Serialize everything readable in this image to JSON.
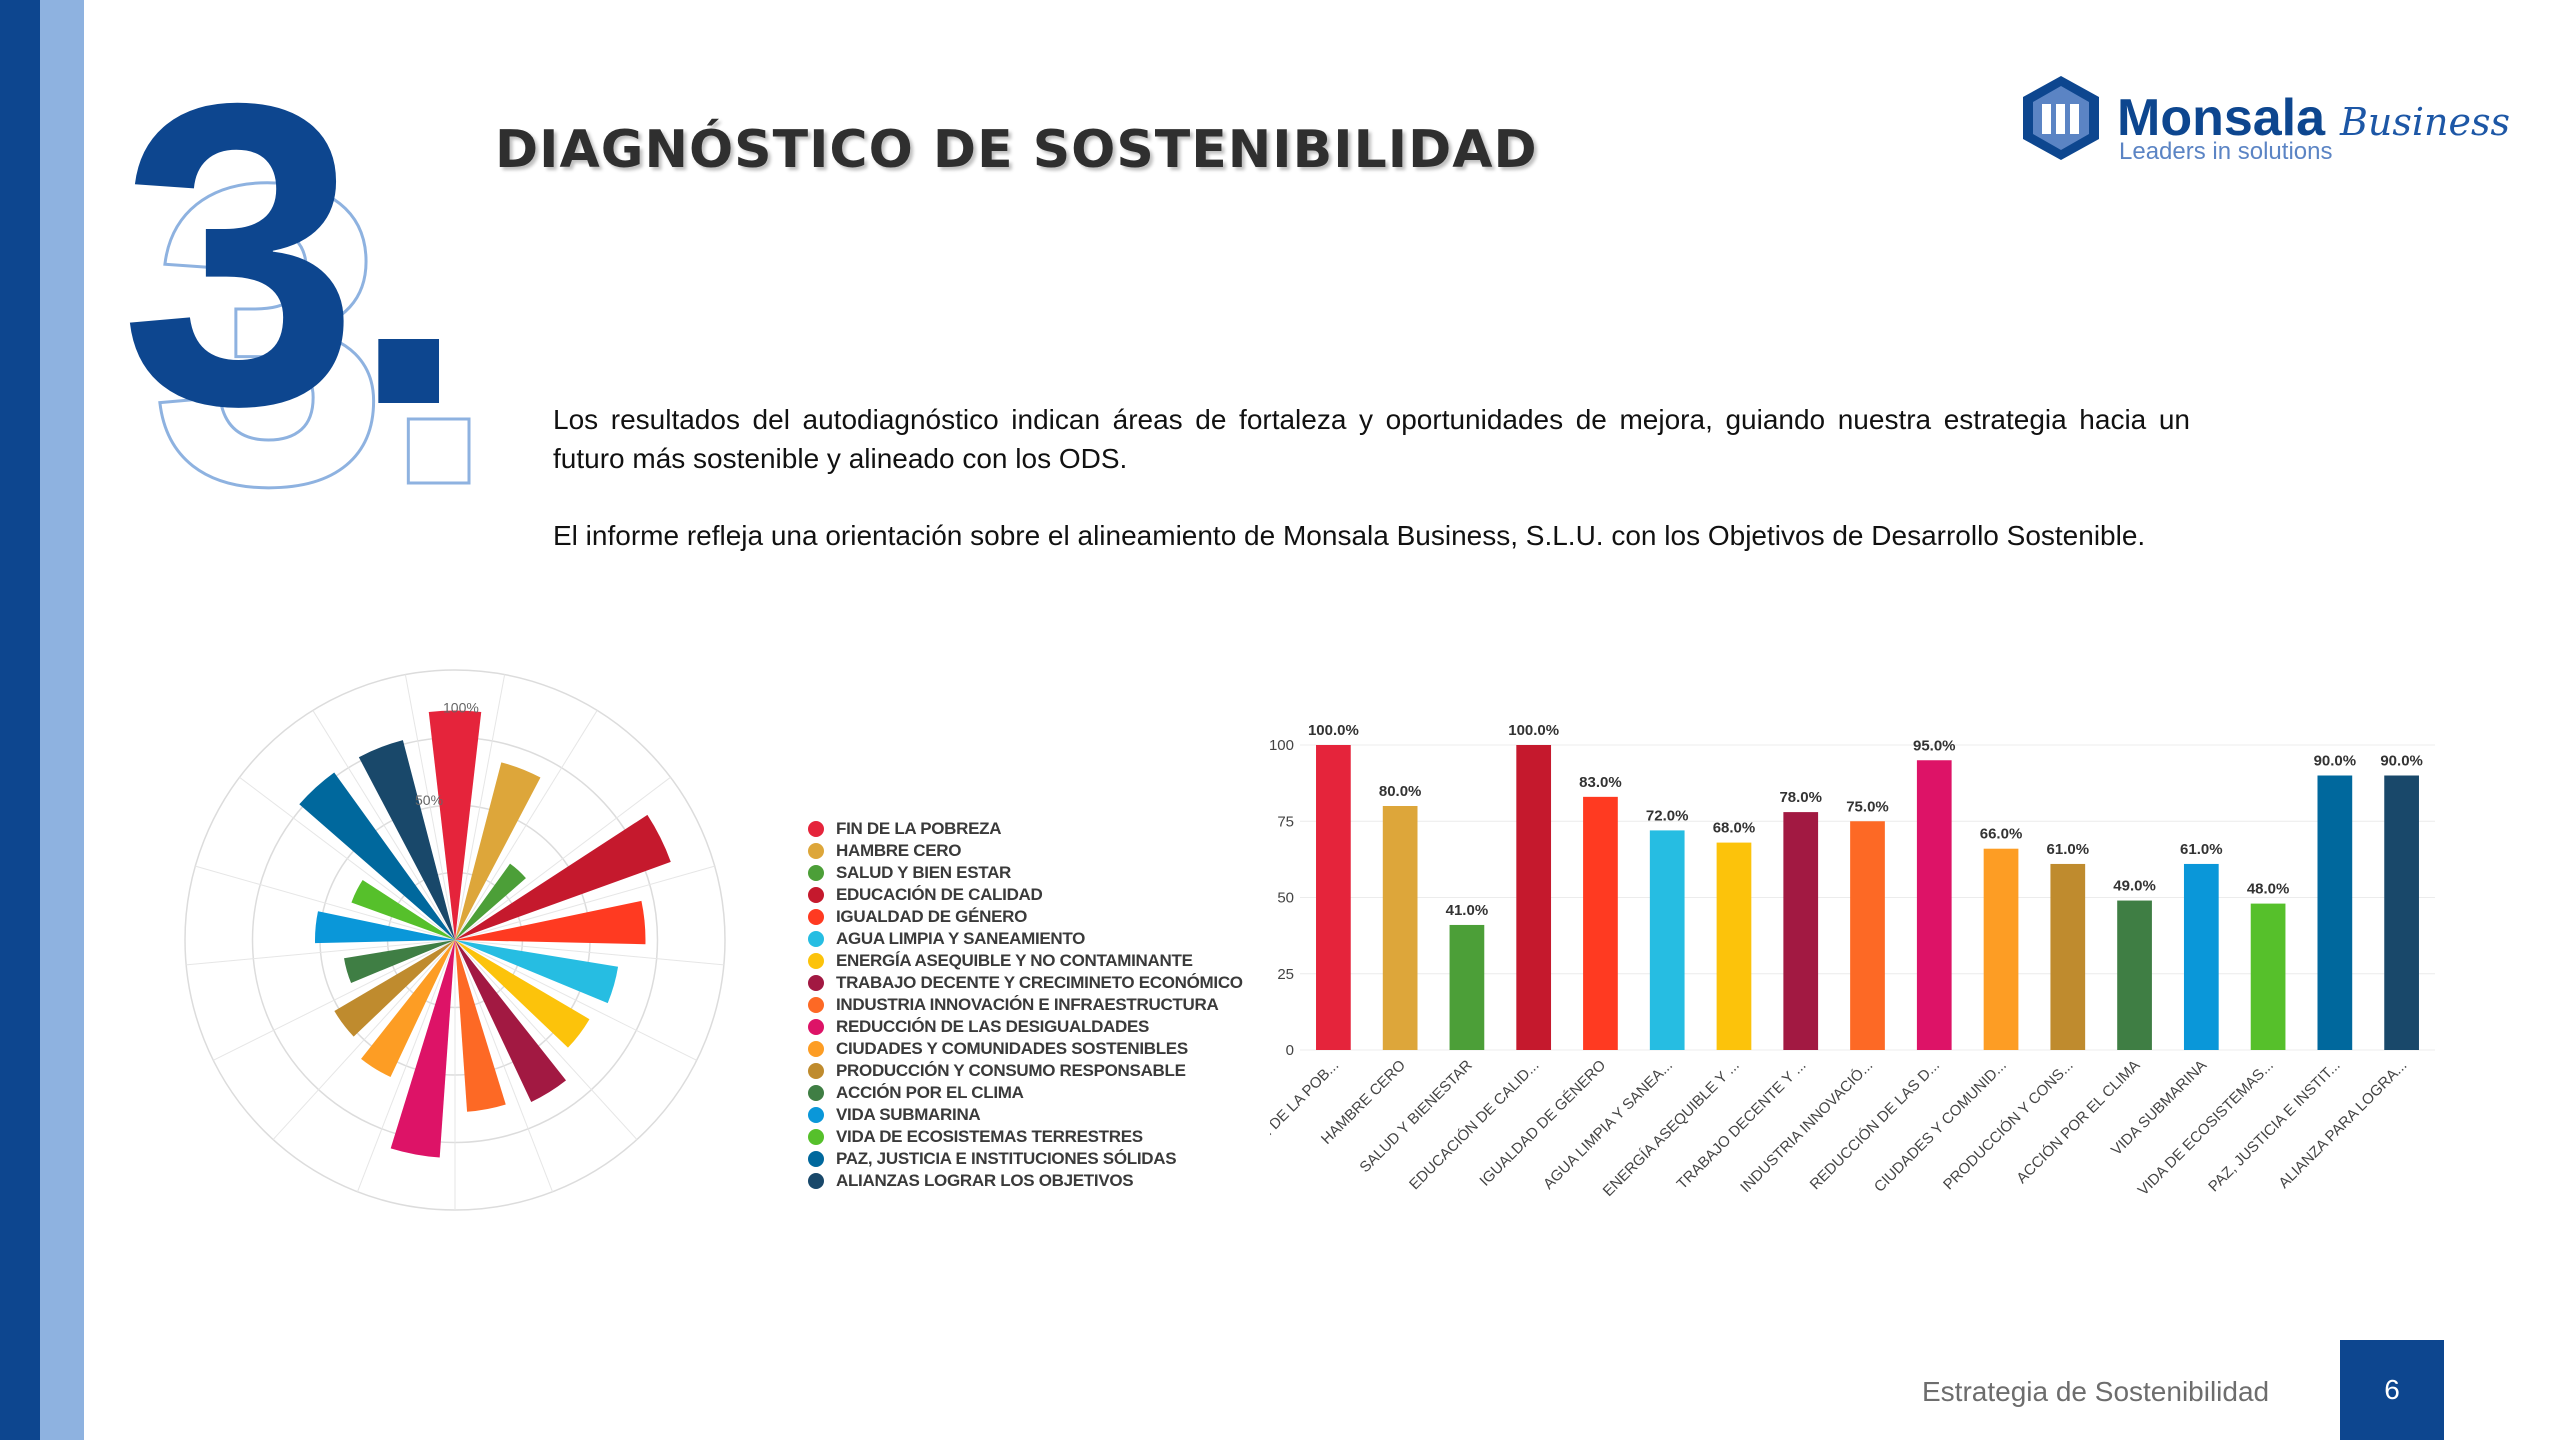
{
  "slide": {
    "section_number": "3.",
    "title": "DIAGNÓSTICO DE SOSTENIBILIDAD",
    "paragraphs": [
      "Los resultados del autodiagnóstico indican áreas de fortaleza y oportunidades de mejora, guiando nuestra estrategia hacia un futuro más sostenible y alineado con los ODS.",
      "El informe refleja una orientación sobre el alineamiento de Monsala Business, S.L.U. con los Objetivos de Desarrollo Sostenible."
    ],
    "footer_text": "Estrategia de Sostenibilidad",
    "page_number": "6"
  },
  "logo": {
    "name": "Monsala",
    "script": "Business",
    "tagline": "Leaders in solutions"
  },
  "colors": {
    "primary": "#0d468f",
    "secondary": "#8eb2e0"
  },
  "chart_data": [
    {
      "type": "polar_area",
      "radial_tick_labels": [
        "100%",
        "50%"
      ],
      "legend_position": "right",
      "legend": [
        "FIN DE LA POBREZA",
        "HAMBRE CERO",
        "SALUD Y BIEN ESTAR",
        "EDUCACIÓN DE CALIDAD",
        "IGUALDAD DE GÉNERO",
        "AGUA LIMPIA Y SANEAMIENTO",
        "ENERGÍA ASEQUIBLE Y NO CONTAMINANTE",
        "TRABAJO DECENTE Y CRECIMINETO ECONÓMICO",
        "INDUSTRIA INNOVACIÓN E INFRAESTRUCTURA",
        "REDUCCIÓN DE LAS DESIGUALDADES",
        "CIUDADES Y COMUNIDADES SOSTENIBLES",
        "PRODUCCIÓN Y CONSUMO RESPONSABLE",
        "ACCIÓN POR EL CLIMA",
        "VIDA SUBMARINA",
        "VIDA DE ECOSISTEMAS TERRESTRES",
        "PAZ, JUSTICIA E INSTITUCIONES SÓLIDAS",
        "ALIANZAS LOGRAR LOS OBJETIVOS"
      ],
      "values": [
        100,
        80,
        41,
        100,
        83,
        72,
        68,
        78,
        75,
        95,
        66,
        61,
        49,
        61,
        48,
        90,
        90
      ],
      "colors": [
        "#e5243b",
        "#dda63a",
        "#4c9f38",
        "#c5192d",
        "#ff3a21",
        "#26bde2",
        "#fcc30b",
        "#a21942",
        "#fd6925",
        "#dd1367",
        "#fd9d24",
        "#bf8b2e",
        "#3f7e44",
        "#0a97d9",
        "#56c02b",
        "#00689d",
        "#19486a"
      ],
      "ylim": [
        0,
        100
      ]
    },
    {
      "type": "bar",
      "categories": [
        "FIN DE LA POB...",
        "HAMBRE CERO",
        "SALUD Y BIENESTAR",
        "EDUCACIÓN DE CALID...",
        "IGUALDAD DE GÉNERO",
        "AGUA LIMPIA Y SANEA...",
        "ENERGÍA ASEQUIBLE Y ...",
        "TRABAJO DECENTE Y ...",
        "INDUSTRIA INNOVACIÓ...",
        "REDUCCIÓN DE LAS D...",
        "CIUDADES Y COMUNID...",
        "PRODUCCIÓN Y CONS...",
        "ACCIÓN POR EL CLIMA",
        "VIDA SUBMARINA",
        "VIDA DE ECOSISTEMAS...",
        "PAZ, JUSTICIA E INSTIT...",
        "ALIANZA PARA LOGRA..."
      ],
      "values": [
        100,
        80,
        41,
        100,
        83,
        72,
        68,
        78,
        75,
        95,
        66,
        61,
        49,
        61,
        48,
        90,
        90
      ],
      "data_labels": [
        "100.0%",
        "80.0%",
        "41.0%",
        "100.0%",
        "83.0%",
        "72.0%",
        "68.0%",
        "78.0%",
        "75.0%",
        "95.0%",
        "66.0%",
        "61.0%",
        "49.0%",
        "61.0%",
        "48.0%",
        "90.0%",
        "90.0%"
      ],
      "y_ticks": [
        "100",
        "75",
        "50",
        "25",
        "0"
      ],
      "ylim": [
        0,
        100
      ],
      "grid": true,
      "colors": [
        "#e5243b",
        "#dda63a",
        "#4c9f38",
        "#c5192d",
        "#ff3a21",
        "#26bde2",
        "#fcc30b",
        "#a21942",
        "#fd6925",
        "#dd1367",
        "#fd9d24",
        "#bf8b2e",
        "#3f7e44",
        "#0a97d9",
        "#56c02b",
        "#00689d",
        "#19486a"
      ]
    }
  ]
}
